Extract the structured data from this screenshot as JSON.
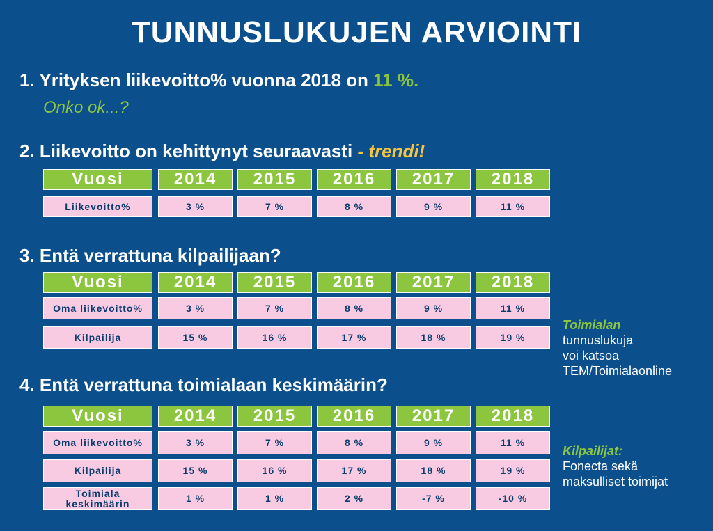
{
  "title": "TUNNUSLUKUJEN ARVIOINTI",
  "q1": {
    "text": "1. Yrityksen liikevoitto% vuonna 2018 on ",
    "value": "11 %.",
    "sub": "Onko ok...?"
  },
  "q2": {
    "text": "2. Liikevoitto on kehittynyt seuraavasti ",
    "emph": "- trendi!"
  },
  "q3": {
    "text": "3. Entä verrattuna kilpailijaan?"
  },
  "q4": {
    "text": "4. Entä verrattuna toimialaan keskimäärin?"
  },
  "years": [
    "Vuosi",
    "2014",
    "2015",
    "2016",
    "2017",
    "2018"
  ],
  "table1": [
    {
      "label": "Liikevoitto%",
      "values": [
        "3 %",
        "7 %",
        "8 %",
        "9 %",
        "11 %"
      ]
    }
  ],
  "table2": [
    {
      "label": "Oma liikevoitto%",
      "values": [
        "3 %",
        "7 %",
        "8 %",
        "9 %",
        "11 %"
      ]
    },
    {
      "label": "Kilpailija",
      "values": [
        "15 %",
        "16 %",
        "17 %",
        "18 %",
        "19 %"
      ]
    }
  ],
  "table3": [
    {
      "label": "Oma liikevoitto%",
      "values": [
        "3 %",
        "7 %",
        "8 %",
        "9 %",
        "11 %"
      ]
    },
    {
      "label": "Kilpailija",
      "values": [
        "15 %",
        "16 %",
        "17 %",
        "18 %",
        "19 %"
      ]
    },
    {
      "label": "Toimiala keskimäärin",
      "values": [
        "1 %",
        "1 %",
        "2 %",
        "-7 %",
        "-10 %"
      ]
    }
  ],
  "note1": {
    "label": "Toimialan",
    "l1": "tunnuslukuja",
    "l2": "voi katsoa",
    "l3": "TEM/Toimialaonline"
  },
  "note2": {
    "label": "Kilpailijat:",
    "l1": "Fonecta sekä",
    "l2": "maksulliset toimijat"
  }
}
